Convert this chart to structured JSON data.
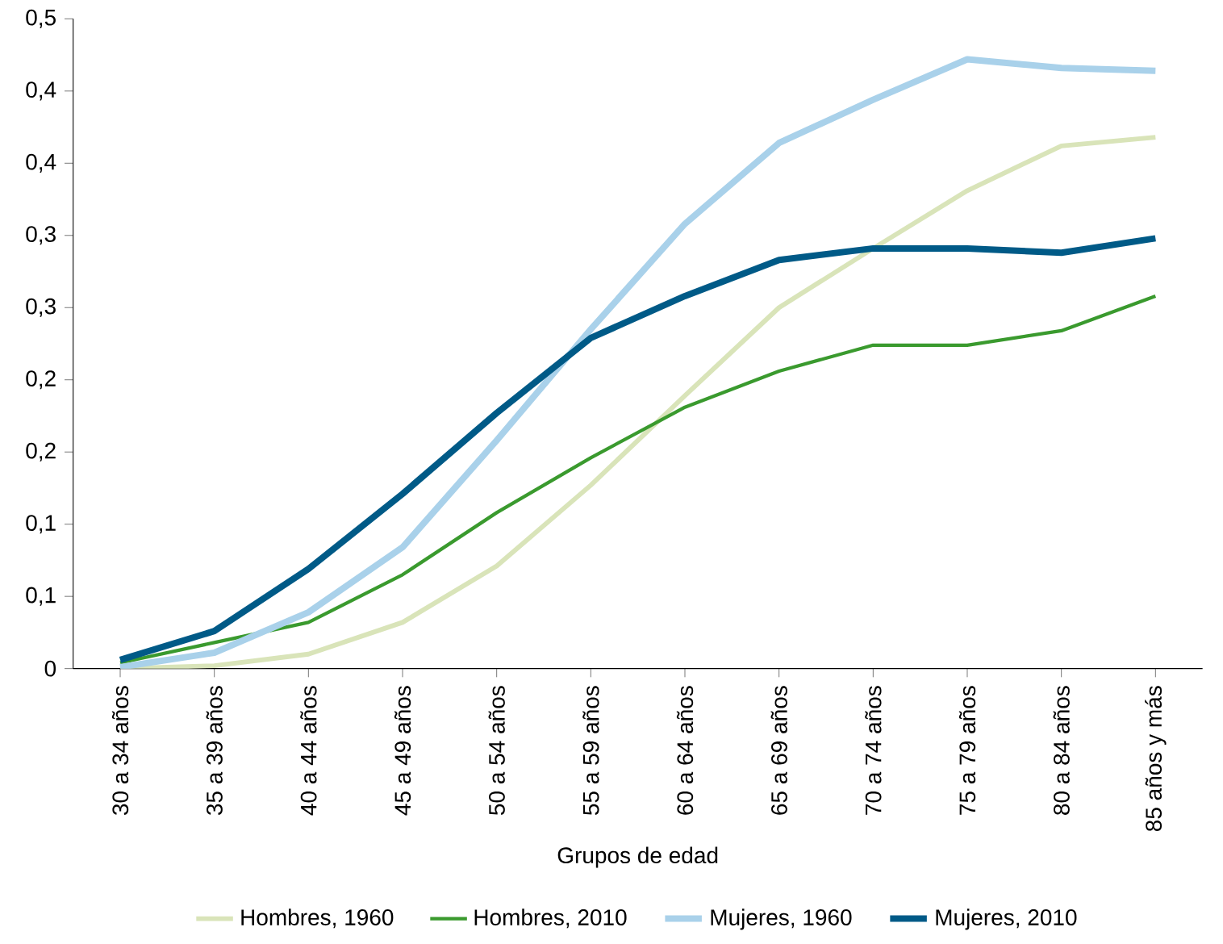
{
  "chart_data": {
    "type": "line",
    "xlabel": "Grupos de edad",
    "categories": [
      "30 a 34 años",
      "35 a 39 años",
      "40 a 44 años",
      "45 a 49 años",
      "50 a 54 años",
      "55 a 59 años",
      "60 a 64 años",
      "65 a 69 años",
      "70 a 74 años",
      "75 a 79 años",
      "80 a 84 años",
      "85 años y más"
    ],
    "ylim": [
      0,
      0.45
    ],
    "yticks": [
      0,
      {
        "value": 0.05,
        "label": "0,1"
      },
      {
        "value": 0.1,
        "label": "0,1"
      },
      {
        "value": 0.15,
        "label": "0,2"
      },
      {
        "value": 0.2,
        "label": "0,2"
      },
      {
        "value": 0.25,
        "label": "0,3"
      },
      {
        "value": 0.3,
        "label": "0,3"
      },
      {
        "value": 0.35,
        "label": "0,4"
      },
      {
        "value": 0.4,
        "label": "0,4"
      },
      {
        "value": 0.45,
        "label": "0,5"
      }
    ],
    "grid": false,
    "legend": "bottom",
    "marker": "none",
    "line_style": "solid",
    "series": [
      {
        "name": "Hombres, 1960",
        "color": "#d9e4b9",
        "values": [
          0,
          0.002,
          0.01,
          0.032,
          0.071,
          0.127,
          0.189,
          0.25,
          0.291,
          0.331,
          0.362,
          0.368
        ]
      },
      {
        "name": "Hombres, 2010",
        "color": "#3a9a2e",
        "values": [
          0.004,
          0.018,
          0.032,
          0.065,
          0.108,
          0.146,
          0.181,
          0.206,
          0.224,
          0.224,
          0.234,
          0.258
        ]
      },
      {
        "name": "Mujeres, 1960",
        "color": "#a9d1ea",
        "values": [
          0.001,
          0.011,
          0.039,
          0.084,
          0.158,
          0.235,
          0.308,
          0.364,
          0.394,
          0.422,
          0.416,
          0.414
        ]
      },
      {
        "name": "Mujeres, 2010",
        "color": "#005a87",
        "values": [
          0.006,
          0.026,
          0.069,
          0.121,
          0.177,
          0.229,
          0.258,
          0.283,
          0.291,
          0.291,
          0.288,
          0.298
        ]
      }
    ]
  }
}
